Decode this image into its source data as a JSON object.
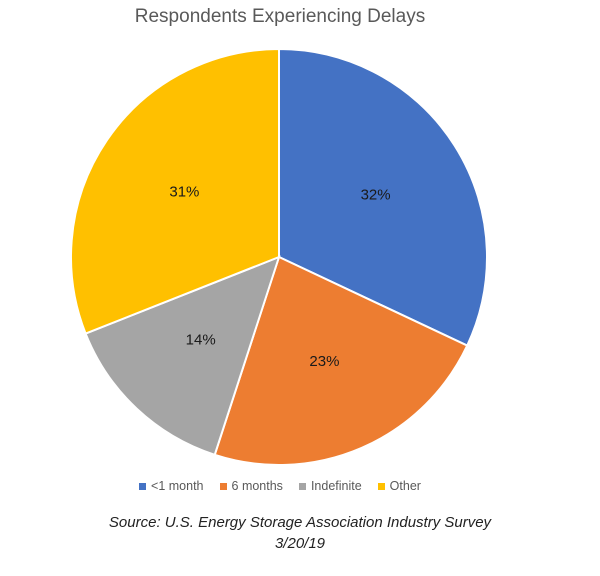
{
  "chart_data": {
    "type": "pie",
    "title": "Respondents Experiencing Delays",
    "categories": [
      "<1 month",
      "6 months",
      "Indefinite",
      "Other"
    ],
    "values": [
      32,
      23,
      14,
      31
    ],
    "data_labels": [
      "32%",
      "23%",
      "14%",
      "31%"
    ],
    "colors": [
      "#4472C4",
      "#ED7D31",
      "#A5A5A5",
      "#FFC000"
    ],
    "legend": "bottom",
    "start": "12 o'clock",
    "direction": "clockwise"
  },
  "source": {
    "line1": "Source: U.S. Energy Storage Association Industry Survey",
    "line2": "3/20/19"
  }
}
